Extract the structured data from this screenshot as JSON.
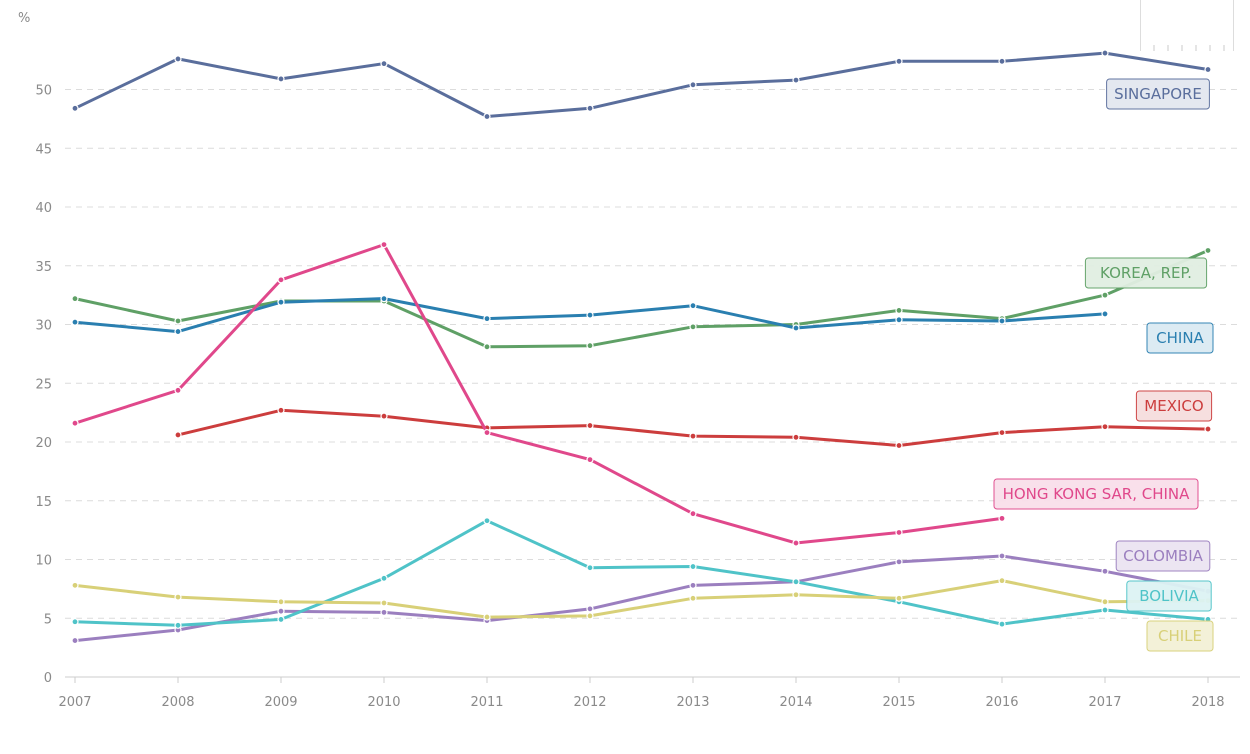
{
  "chart_data": {
    "type": "line",
    "unit": "%",
    "ylim": [
      0,
      55
    ],
    "yticks": [
      0,
      5,
      10,
      15,
      20,
      25,
      30,
      35,
      40,
      45,
      50
    ],
    "grid": true,
    "x": [
      "2007",
      "2008",
      "2009",
      "2010",
      "2011",
      "2012",
      "2013",
      "2014",
      "2015",
      "2016",
      "2017",
      "2018"
    ],
    "series": [
      {
        "name": "SINGAPORE",
        "color": "#5a6e9c",
        "label_bg": "#e3e7f0",
        "values": [
          48.4,
          52.6,
          50.9,
          52.2,
          47.7,
          48.4,
          50.4,
          50.8,
          52.4,
          52.4,
          53.1,
          51.7
        ]
      },
      {
        "name": "KOREA, REP.",
        "color": "#5fa066",
        "label_bg": "#e1efe2",
        "values": [
          32.2,
          30.3,
          32.0,
          32.0,
          28.1,
          28.2,
          29.8,
          30.0,
          31.2,
          30.5,
          32.5,
          36.3
        ]
      },
      {
        "name": "CHINA",
        "color": "#2a7fb0",
        "label_bg": "#dbeaf3",
        "values": [
          30.2,
          29.4,
          31.9,
          32.2,
          30.5,
          30.8,
          31.6,
          29.7,
          30.4,
          30.3,
          30.9,
          null
        ]
      },
      {
        "name": "MEXICO",
        "color": "#cc3d3d",
        "label_bg": "#f6dede",
        "values": [
          null,
          20.6,
          22.7,
          22.2,
          21.2,
          21.4,
          20.5,
          20.4,
          19.7,
          20.8,
          21.3,
          21.1
        ]
      },
      {
        "name": "HONG KONG SAR, CHINA",
        "color": "#e0488b",
        "label_bg": "#f9dfea",
        "values": [
          21.6,
          24.4,
          33.8,
          36.8,
          20.8,
          18.5,
          13.9,
          11.4,
          12.3,
          13.5,
          null,
          null
        ]
      },
      {
        "name": "COLOMBIA",
        "color": "#9b7fbf",
        "label_bg": "#ebe4f2",
        "values": [
          3.1,
          4.0,
          5.6,
          5.5,
          4.8,
          5.8,
          7.8,
          8.1,
          9.8,
          10.3,
          9.0,
          7.3
        ]
      },
      {
        "name": "BOLIVIA",
        "color": "#4fc3c8",
        "label_bg": "#ddf3f4",
        "values": [
          4.7,
          4.4,
          4.9,
          8.4,
          13.3,
          9.3,
          9.4,
          8.1,
          6.4,
          4.5,
          5.7,
          4.9
        ]
      },
      {
        "name": "CHILE",
        "color": "#d8d078",
        "label_bg": "#f3f1d6",
        "values": [
          7.8,
          6.8,
          6.4,
          6.3,
          5.1,
          5.2,
          6.7,
          7.0,
          6.7,
          8.2,
          6.4,
          6.5
        ]
      }
    ]
  }
}
